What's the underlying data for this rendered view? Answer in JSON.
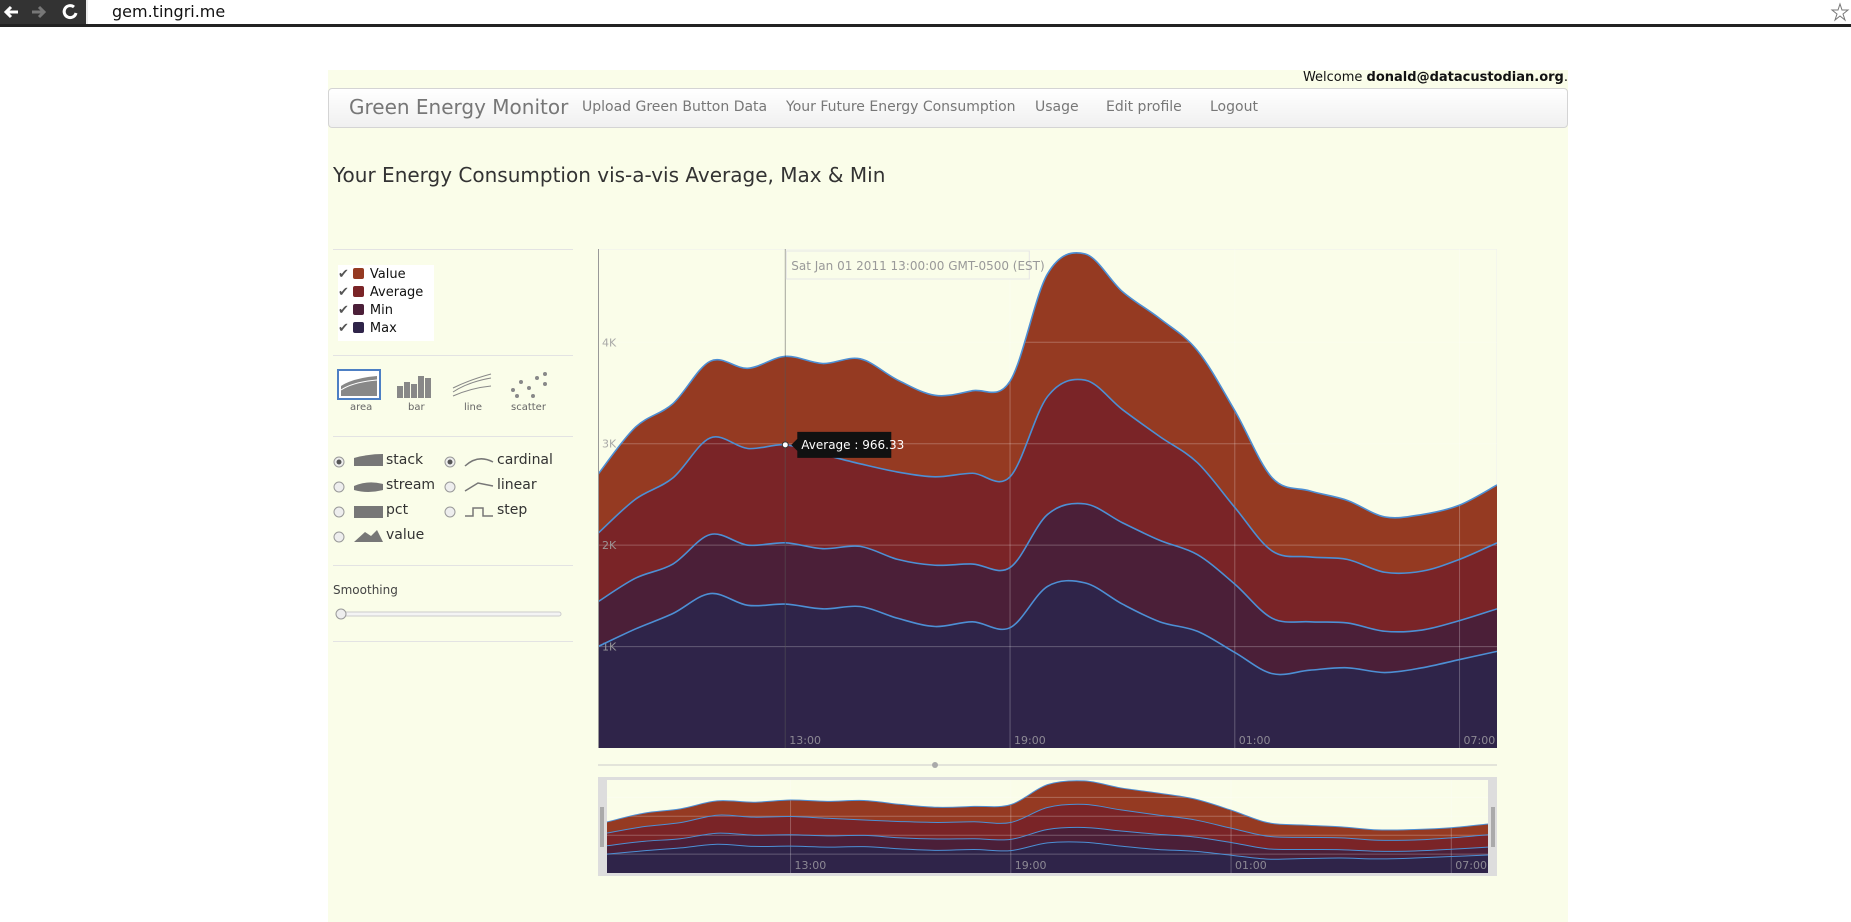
{
  "browser": {
    "url": "gem.tingri.me"
  },
  "header": {
    "welcome": "Welcome",
    "user": "donald@datacustodian.org",
    "welcome_end": "."
  },
  "nav": {
    "brand": "Green Energy Monitor",
    "items": [
      "Upload Green Button Data",
      "Your Future Energy Consumption",
      "Usage",
      "Edit profile",
      "Logout"
    ]
  },
  "page": {
    "heading": "Your Energy Consumption vis-a-vis Average, Max & Min"
  },
  "controls": {
    "renderers": [
      "area",
      "bar",
      "line",
      "scatter"
    ],
    "offsets": [
      "stack",
      "stream",
      "pct",
      "value"
    ],
    "interpolations": [
      "cardinal",
      "linear",
      "step"
    ],
    "smoothing": "Smoothing"
  },
  "chart_data": {
    "type": "area",
    "stacked": true,
    "x": [
      8,
      9,
      10,
      11,
      12,
      13,
      14,
      15,
      16,
      17,
      18,
      19,
      20,
      21,
      22,
      23,
      24,
      25,
      26,
      27,
      28,
      29,
      30,
      31,
      32
    ],
    "series": [
      {
        "name": "Value",
        "color": "#953a22",
        "values": [
          582,
          710,
          732,
          756,
          791,
          872,
          896,
          1035,
          907,
          803,
          814,
          942,
          1209,
          1244,
          1163,
          1163,
          1105,
          954,
          721,
          651,
          582,
          546,
          558,
          535,
          570
        ]
      },
      {
        "name": "Average",
        "color": "#7a2427",
        "values": [
          674,
          779,
          849,
          953,
          953,
          966.33,
          930,
          814,
          861,
          872,
          895,
          895,
          1163,
          1221,
          1116,
          1023,
          907,
          756,
          663,
          640,
          627,
          582,
          581,
          604,
          651
        ]
      },
      {
        "name": "Min",
        "color": "#4b1f38",
        "values": [
          442,
          500,
          488,
          582,
          593,
          604,
          593,
          593,
          581,
          604,
          570,
          593,
          709,
          779,
          802,
          803,
          756,
          674,
          546,
          477,
          442,
          407,
          372,
          384,
          419
        ]
      },
      {
        "name": "Max",
        "color": "#2f2449",
        "values": [
          1000,
          1174,
          1326,
          1523,
          1407,
          1419,
          1372,
          1395,
          1279,
          1198,
          1244,
          1186,
          1593,
          1628,
          1419,
          1244,
          1151,
          942,
          733,
          767,
          791,
          744,
          791,
          872,
          953
        ]
      }
    ],
    "stroke_color": "#4d8fd4",
    "xlim": [
      8,
      32
    ],
    "xticks": [
      {
        "value": 13,
        "label": "13:00"
      },
      {
        "value": 19,
        "label": "19:00"
      },
      {
        "value": 25,
        "label": "01:00"
      },
      {
        "value": 31,
        "label": "07:00"
      }
    ],
    "ylim": [
      0,
      4920
    ],
    "yticks": [
      {
        "value": 1000,
        "label": "1K"
      },
      {
        "value": 2000,
        "label": "2K"
      },
      {
        "value": 3000,
        "label": "3K"
      },
      {
        "value": 4000,
        "label": "4K"
      }
    ],
    "grid": true,
    "tooltip": {
      "x": 13,
      "series": 1,
      "date": "Sat Jan 01 2011 13:00:00 GMT-0500 (EST)",
      "label": "Average : 966.33"
    }
  }
}
